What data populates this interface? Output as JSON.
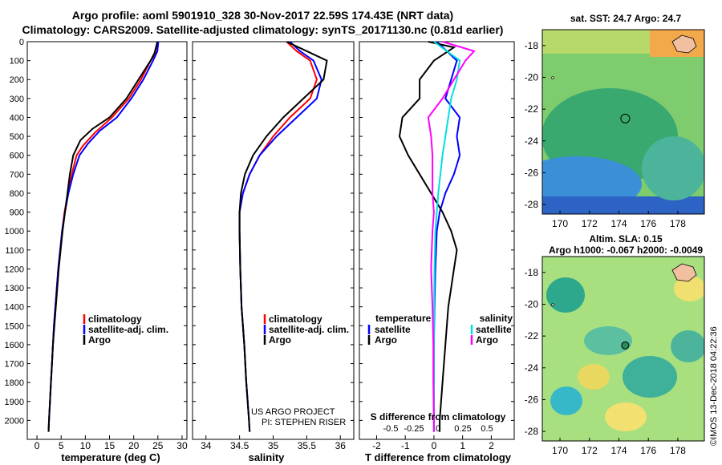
{
  "header": {
    "title_line1": "Argo profile: aoml 5901910_328 30-Nov-2017 22.59S 174.43E (NRT data)",
    "title_line2": "Climatology: CARS2009. Satellite-adjusted climatology: synTS_20171130.nc (0.81d earlier)"
  },
  "maps": {
    "sst_title": "sat. SST: 24.7 Argo: 24.7",
    "sla_title_line1": "Altim. SLA: 0.15",
    "sla_title_line2": "Argo h1000: -0.067 h2000: -0.0049",
    "lon_ticks": [
      "170",
      "172",
      "174",
      "176",
      "178"
    ],
    "lat_ticks": [
      "-18",
      "-20",
      "-22",
      "-24",
      "-26",
      "-28"
    ],
    "float_lon": 174.43,
    "float_lat": -22.59,
    "credit": "©IMOS 13-Dec-2018 04:22:36"
  },
  "colors": {
    "climatology": "#ff0000",
    "satellite": "#0000ff",
    "argo": "#000000",
    "sat_salinity": "#00e0e0",
    "argo_salinity": "#ff00ff"
  },
  "chart_data": [
    {
      "type": "line",
      "xlabel": "temperature (deg C)",
      "xlim": [
        -2,
        31
      ],
      "xticks": [
        "0",
        "5",
        "10",
        "15",
        "20",
        "25",
        "30"
      ],
      "ylim": [
        0,
        2100
      ],
      "yticks": [
        "0",
        "100",
        "200",
        "300",
        "400",
        "500",
        "600",
        "700",
        "800",
        "900",
        "1000",
        "1100",
        "1200",
        "1300",
        "1400",
        "1500",
        "1600",
        "1700",
        "1800",
        "1900",
        "2000"
      ],
      "legend": [
        "climatology",
        "satellite-adj. clim.",
        "Argo"
      ],
      "series": [
        {
          "name": "climatology",
          "color": "#ff0000",
          "points": [
            [
              25,
              0
            ],
            [
              24.8,
              50
            ],
            [
              23.5,
              100
            ],
            [
              21.5,
              200
            ],
            [
              19,
              300
            ],
            [
              15.5,
              400
            ],
            [
              12,
              480
            ],
            [
              9.5,
              550
            ],
            [
              8.2,
              600
            ],
            [
              7.2,
              700
            ],
            [
              6.4,
              800
            ],
            [
              5.7,
              900
            ],
            [
              5.2,
              1000
            ],
            [
              4.8,
              1100
            ],
            [
              4.4,
              1200
            ],
            [
              4.1,
              1300
            ],
            [
              3.8,
              1400
            ],
            [
              3.5,
              1500
            ],
            [
              3.3,
              1600
            ],
            [
              3.1,
              1700
            ],
            [
              2.9,
              1800
            ],
            [
              2.7,
              1900
            ],
            [
              2.5,
              2000
            ],
            [
              2.4,
              2060
            ]
          ]
        },
        {
          "name": "satellite-adj. clim.",
          "color": "#0000ff",
          "points": [
            [
              25.1,
              0
            ],
            [
              24.9,
              50
            ],
            [
              24,
              100
            ],
            [
              22,
              200
            ],
            [
              19.5,
              300
            ],
            [
              16.5,
              400
            ],
            [
              13,
              470
            ],
            [
              10.5,
              540
            ],
            [
              8.8,
              600
            ],
            [
              7.5,
              700
            ],
            [
              6.5,
              800
            ],
            [
              5.8,
              900
            ],
            [
              5.2,
              1000
            ],
            [
              4.8,
              1100
            ],
            [
              4.4,
              1200
            ],
            [
              4.1,
              1300
            ],
            [
              3.8,
              1400
            ],
            [
              3.5,
              1500
            ],
            [
              3.3,
              1600
            ],
            [
              3.1,
              1700
            ],
            [
              2.9,
              1800
            ],
            [
              2.7,
              1900
            ],
            [
              2.5,
              2000
            ],
            [
              2.4,
              2060
            ]
          ]
        },
        {
          "name": "Argo",
          "color": "#000000",
          "points": [
            [
              24.9,
              0
            ],
            [
              24.6,
              30
            ],
            [
              24.3,
              60
            ],
            [
              23.5,
              100
            ],
            [
              21,
              200
            ],
            [
              18.5,
              300
            ],
            [
              15,
              400
            ],
            [
              11.5,
              460
            ],
            [
              9,
              520
            ],
            [
              7.5,
              600
            ],
            [
              6.8,
              700
            ],
            [
              6.3,
              800
            ],
            [
              5.8,
              900
            ],
            [
              5.3,
              1000
            ],
            [
              4.9,
              1100
            ],
            [
              4.5,
              1200
            ],
            [
              4.2,
              1300
            ],
            [
              3.9,
              1400
            ],
            [
              3.6,
              1500
            ],
            [
              3.3,
              1600
            ],
            [
              3.1,
              1700
            ],
            [
              2.9,
              1800
            ],
            [
              2.7,
              1900
            ],
            [
              2.5,
              2000
            ],
            [
              2.4,
              2060
            ]
          ]
        }
      ]
    },
    {
      "type": "line",
      "xlabel": "salinity",
      "xlim": [
        33.8,
        36.2
      ],
      "xticks": [
        "34",
        "34.5",
        "35",
        "35.5",
        "36"
      ],
      "ylim": [
        0,
        2100
      ],
      "legend": [
        "climatology",
        "satellite-adj. clim.",
        "Argo"
      ],
      "annotation_line1": "US ARGO PROJECT",
      "annotation_line2": "PI: STEPHEN RISER",
      "series": [
        {
          "name": "climatology",
          "color": "#ff0000",
          "points": [
            [
              35.2,
              0
            ],
            [
              35.35,
              50
            ],
            [
              35.55,
              100
            ],
            [
              35.65,
              200
            ],
            [
              35.55,
              300
            ],
            [
              35.25,
              400
            ],
            [
              35,
              500
            ],
            [
              34.8,
              600
            ],
            [
              34.65,
              700
            ],
            [
              34.55,
              800
            ],
            [
              34.5,
              900
            ],
            [
              34.5,
              1000
            ],
            [
              34.51,
              1200
            ],
            [
              34.53,
              1400
            ],
            [
              34.57,
              1600
            ],
            [
              34.6,
              1800
            ],
            [
              34.64,
              2000
            ],
            [
              34.65,
              2060
            ]
          ]
        },
        {
          "name": "satellite-adj. clim.",
          "color": "#0000ff",
          "points": [
            [
              35.25,
              0
            ],
            [
              35.4,
              50
            ],
            [
              35.6,
              100
            ],
            [
              35.72,
              200
            ],
            [
              35.65,
              300
            ],
            [
              35.35,
              400
            ],
            [
              35.05,
              500
            ],
            [
              34.8,
              600
            ],
            [
              34.65,
              700
            ],
            [
              34.55,
              800
            ],
            [
              34.5,
              900
            ],
            [
              34.5,
              1000
            ],
            [
              34.51,
              1200
            ],
            [
              34.53,
              1400
            ],
            [
              34.57,
              1600
            ],
            [
              34.6,
              1800
            ],
            [
              34.64,
              2000
            ],
            [
              34.65,
              2060
            ]
          ]
        },
        {
          "name": "Argo",
          "color": "#000000",
          "points": [
            [
              35.2,
              0
            ],
            [
              35.5,
              50
            ],
            [
              35.8,
              100
            ],
            [
              35.75,
              200
            ],
            [
              35.45,
              300
            ],
            [
              35.15,
              400
            ],
            [
              34.9,
              500
            ],
            [
              34.7,
              600
            ],
            [
              34.58,
              700
            ],
            [
              34.52,
              800
            ],
            [
              34.5,
              900
            ],
            [
              34.5,
              1000
            ],
            [
              34.51,
              1200
            ],
            [
              34.53,
              1400
            ],
            [
              34.57,
              1600
            ],
            [
              34.6,
              1800
            ],
            [
              34.64,
              2000
            ],
            [
              34.65,
              2060
            ]
          ]
        }
      ]
    },
    {
      "type": "line",
      "xlabel": "T difference from climatology",
      "xlim": [
        -2.6,
        2.8
      ],
      "xticks": [
        "-2",
        "-1",
        "0",
        "1",
        "2"
      ],
      "s_xlabel": "S difference from climatology",
      "s_xticks": [
        "-0.5",
        "-0.25",
        "0",
        "0.25",
        "0.5"
      ],
      "ylim": [
        0,
        2100
      ],
      "legend_temperature_heading": "temperature",
      "legend_salinity_heading": "salinity",
      "legend_temperature": [
        "satellite",
        "Argo"
      ],
      "legend_salinity": [
        "satellite",
        "Argo"
      ],
      "series": [
        {
          "name": "satellite",
          "color": "#0000ff",
          "points": [
            [
              0.1,
              0
            ],
            [
              0.8,
              100
            ],
            [
              0.6,
              200
            ],
            [
              0.4,
              300
            ],
            [
              0.9,
              400
            ],
            [
              0.8,
              500
            ],
            [
              0.9,
              600
            ],
            [
              0.7,
              700
            ],
            [
              0.4,
              800
            ],
            [
              0.2,
              900
            ],
            [
              0.1,
              1000
            ],
            [
              0.05,
              1200
            ],
            [
              0.02,
              1400
            ],
            [
              0,
              1600
            ],
            [
              0,
              1800
            ],
            [
              0,
              2000
            ],
            [
              0,
              2060
            ]
          ]
        },
        {
          "name": "Argo",
          "color": "#000000",
          "points": [
            [
              -0.2,
              0
            ],
            [
              0.7,
              30
            ],
            [
              0,
              100
            ],
            [
              -0.5,
              200
            ],
            [
              -0.5,
              300
            ],
            [
              -1.1,
              400
            ],
            [
              -1.2,
              500
            ],
            [
              -0.9,
              600
            ],
            [
              -0.5,
              700
            ],
            [
              -0.1,
              800
            ],
            [
              0.3,
              900
            ],
            [
              0.6,
              1000
            ],
            [
              0.8,
              1100
            ],
            [
              0.7,
              1200
            ],
            [
              0.6,
              1300
            ],
            [
              0.5,
              1400
            ],
            [
              0.4,
              1600
            ],
            [
              0.3,
              1800
            ],
            [
              0.2,
              2000
            ],
            [
              0.2,
              2060
            ]
          ]
        },
        {
          "name": "salinity satellite",
          "color": "#00e0e0",
          "points": [
            [
              0,
              0
            ],
            [
              0.9,
              100
            ],
            [
              0.8,
              200
            ],
            [
              0.6,
              300
            ],
            [
              0.5,
              400
            ],
            [
              0.4,
              500
            ],
            [
              0.3,
              600
            ],
            [
              0.15,
              800
            ],
            [
              0.05,
              1000
            ],
            [
              0.02,
              1200
            ],
            [
              0,
              1500
            ],
            [
              0,
              1800
            ],
            [
              0,
              2060
            ]
          ]
        },
        {
          "name": "salinity Argo",
          "color": "#ff00ff",
          "points": [
            [
              0.3,
              0
            ],
            [
              1.4,
              50
            ],
            [
              1.1,
              100
            ],
            [
              0.7,
              200
            ],
            [
              0.3,
              300
            ],
            [
              -0.2,
              400
            ],
            [
              -0.1,
              500
            ],
            [
              -0.05,
              600
            ],
            [
              -0.05,
              700
            ],
            [
              -0.05,
              800
            ],
            [
              0,
              900
            ],
            [
              -0.05,
              1000
            ],
            [
              -0.1,
              1200
            ],
            [
              -0.05,
              1400
            ],
            [
              -0.02,
              1600
            ],
            [
              -0.02,
              1800
            ],
            [
              0,
              2000
            ],
            [
              0,
              2060
            ]
          ]
        }
      ]
    }
  ]
}
